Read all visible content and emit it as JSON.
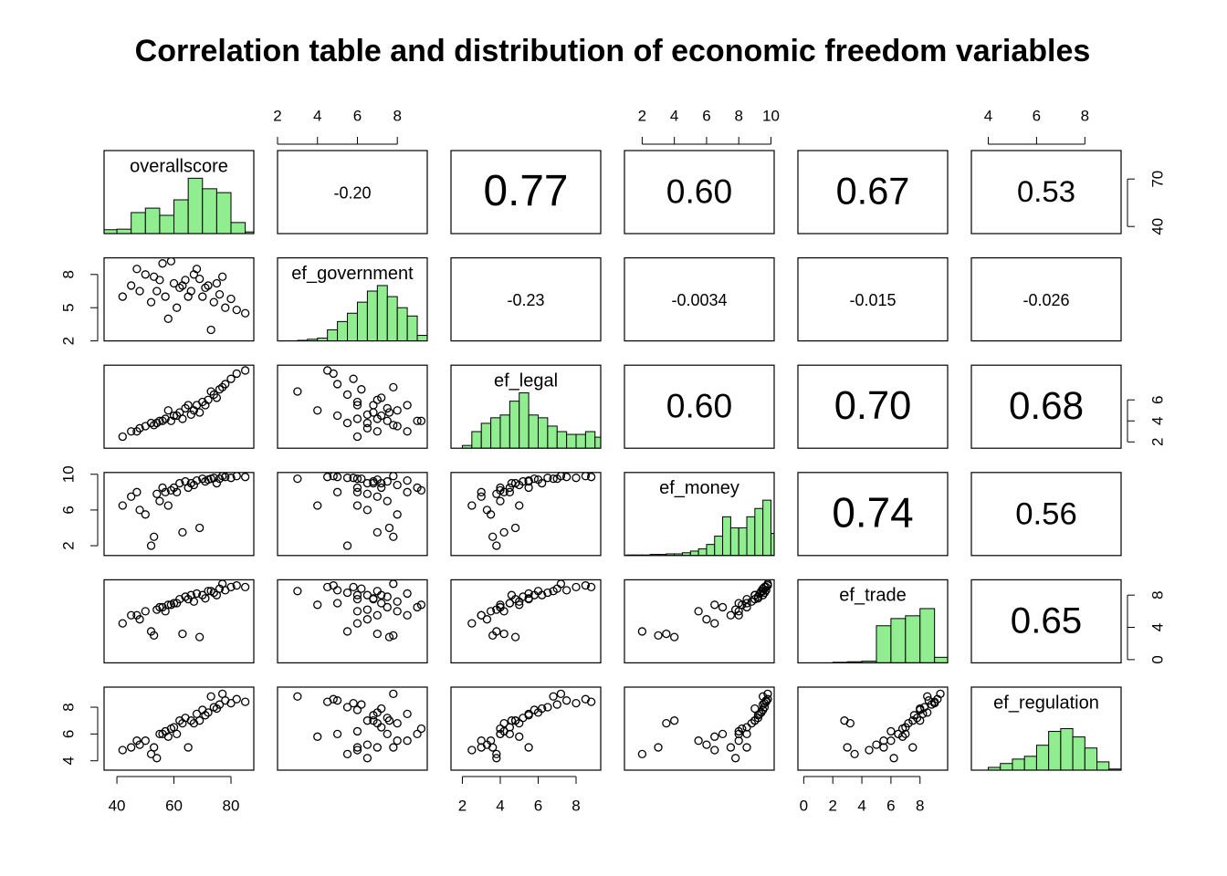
{
  "chart_data": {
    "type": "pairs",
    "title": "Correlation table and distribution of economic freedom variables",
    "variables": [
      {
        "name": "overallscore",
        "lim": [
          35.5,
          88
        ],
        "xticks": [
          40,
          60,
          80
        ],
        "yticks": [
          40,
          70
        ],
        "hist": {
          "bins": [
            35,
            40,
            45,
            50,
            55,
            60,
            65,
            70,
            75,
            80,
            85,
            90
          ],
          "values": [
            0.07,
            0.08,
            0.38,
            0.46,
            0.33,
            0.61,
            1,
            0.81,
            0.74,
            0.2,
            0.03
          ]
        }
      },
      {
        "name": "ef_government",
        "lim": [
          2,
          9.5
        ],
        "xticks": [
          2,
          4,
          6,
          8
        ],
        "yticks": [
          2,
          5,
          8
        ],
        "hist": {
          "bins": [
            2.5,
            3,
            3.5,
            4,
            4.5,
            5,
            5.5,
            6,
            6.5,
            7,
            7.5,
            8,
            8.5,
            9,
            9.5
          ],
          "values": [
            0,
            0.01,
            0.03,
            0.05,
            0.2,
            0.35,
            0.5,
            0.7,
            0.9,
            1,
            0.8,
            0.6,
            0.45,
            0.1
          ]
        }
      },
      {
        "name": "ef_legal",
        "lim": [
          1.4,
          9.3
        ],
        "xticks": [
          2,
          4,
          6,
          8
        ],
        "yticks": [
          2,
          4,
          6
        ],
        "hist": {
          "bins": [
            2,
            2.5,
            3,
            3.5,
            4,
            4.5,
            5,
            5.5,
            6,
            6.5,
            7,
            7.5,
            8,
            8.5,
            9,
            9.5
          ],
          "values": [
            0.05,
            0.3,
            0.45,
            0.55,
            0.6,
            0.85,
            1,
            0.6,
            0.55,
            0.4,
            0.3,
            0.25,
            0.25,
            0.3,
            0.2
          ]
        }
      },
      {
        "name": "ef_money",
        "lim": [
          0.9,
          10.2
        ],
        "xticks": [
          2,
          4,
          6,
          8,
          10
        ],
        "yticks": [
          2,
          6,
          10
        ],
        "hist": {
          "bins": [
            1,
            1.5,
            2,
            2.5,
            3,
            3.5,
            4,
            4.5,
            5,
            5.5,
            6,
            6.5,
            7,
            7.5,
            8,
            8.5,
            9,
            9.5,
            10,
            10.5
          ],
          "values": [
            0.01,
            0.01,
            0.01,
            0.02,
            0.02,
            0.03,
            0.03,
            0.05,
            0.08,
            0.12,
            0.2,
            0.35,
            0.7,
            0.5,
            0.5,
            0.7,
            0.85,
            1,
            0.4
          ]
        }
      },
      {
        "name": "ef_trade",
        "lim": [
          -0.4,
          9.9
        ],
        "xticks": [
          0,
          2,
          4,
          6,
          8
        ],
        "yticks": [
          0,
          4,
          8
        ],
        "hist": {
          "bins": [
            0,
            1,
            2,
            3,
            4,
            5,
            6,
            7,
            8,
            9,
            10
          ],
          "values": [
            0,
            0,
            0.01,
            0.02,
            0.03,
            0.67,
            0.8,
            0.85,
            0.98,
            0.1
          ]
        }
      },
      {
        "name": "ef_regulation",
        "lim": [
          3.3,
          9.5
        ],
        "xticks": [
          4,
          6,
          8
        ],
        "yticks": [
          4,
          6,
          8
        ],
        "hist": {
          "bins": [
            4,
            4.5,
            5,
            5.5,
            6,
            6.5,
            7,
            7.5,
            8,
            8.5,
            9,
            9.5
          ],
          "values": [
            0.05,
            0.12,
            0.2,
            0.25,
            0.45,
            0.7,
            0.75,
            0.6,
            0.4,
            0.15,
            0.02
          ]
        }
      }
    ],
    "hist_ylim": [
      0,
      1.5
    ],
    "hist_color": "#90ee90",
    "point_color": "#000000",
    "correlations": [
      {
        "value": -0.2,
        "label": "-0.20"
      },
      0.77,
      {
        "value": 0.6,
        "label": "0.60"
      },
      0.67,
      0.53,
      -0.23,
      -0.0034,
      -0.015,
      -0.026,
      {
        "value": 0.6,
        "label": "0.60"
      },
      {
        "value": 0.7,
        "label": "0.70"
      },
      0.68,
      0.74,
      0.56,
      0.65
    ],
    "observations": [
      [
        45,
        7.0,
        3.0,
        7.5,
        5.5,
        5.0
      ],
      [
        48,
        6.5,
        3.3,
        6.0,
        5.0,
        5.2
      ],
      [
        50,
        8.0,
        3.5,
        5.5,
        6.0,
        5.5
      ],
      [
        52,
        5.5,
        3.8,
        2.0,
        3.5,
        4.5
      ],
      [
        55,
        7.5,
        4.0,
        7.0,
        6.5,
        6.0
      ],
      [
        57,
        6.0,
        4.2,
        8.0,
        6.0,
        6.2
      ],
      [
        60,
        7.2,
        4.5,
        8.5,
        7.0,
        6.5
      ],
      [
        62,
        6.8,
        4.8,
        9.0,
        7.5,
        7.0
      ],
      [
        58,
        4.0,
        5.0,
        6.5,
        6.8,
        5.8
      ],
      [
        64,
        7.5,
        5.2,
        9.2,
        7.8,
        7.2
      ],
      [
        66,
        6.5,
        4.6,
        9.0,
        8.0,
        7.0
      ],
      [
        68,
        8.5,
        5.5,
        9.3,
        8.2,
        7.5
      ],
      [
        70,
        6.0,
        5.8,
        9.5,
        8.0,
        7.8
      ],
      [
        72,
        7.0,
        6.0,
        9.4,
        8.5,
        7.6
      ],
      [
        74,
        5.5,
        6.5,
        9.6,
        8.3,
        8.0
      ],
      [
        76,
        6.2,
        7.0,
        9.5,
        8.8,
        8.2
      ],
      [
        78,
        5.0,
        7.5,
        9.7,
        8.6,
        8.5
      ],
      [
        80,
        5.8,
        8.0,
        9.6,
        9.0,
        8.3
      ],
      [
        82,
        4.8,
        8.5,
        9.8,
        9.2,
        8.6
      ],
      [
        85,
        4.5,
        8.8,
        9.7,
        9.0,
        8.4
      ],
      [
        42,
        6.0,
        2.5,
        6.5,
        4.5,
        4.8
      ],
      [
        47,
        8.5,
        3.0,
        8.0,
        5.5,
        5.5
      ],
      [
        53,
        7.8,
        3.6,
        3.0,
        3.0,
        5.0
      ],
      [
        56,
        9.0,
        4.0,
        8.5,
        6.5,
        6.0
      ],
      [
        63,
        7.0,
        4.2,
        3.5,
        3.2,
        6.8
      ],
      [
        67,
        8.0,
        5.0,
        8.8,
        7.2,
        6.8
      ],
      [
        69,
        7.6,
        4.8,
        4.0,
        2.8,
        7.0
      ],
      [
        71,
        6.8,
        5.5,
        9.2,
        7.6,
        7.4
      ],
      [
        75,
        7.2,
        6.2,
        9.0,
        8.0,
        7.9
      ],
      [
        61,
        5.0,
        4.5,
        8.0,
        7.0,
        6.0
      ],
      [
        54,
        6.5,
        3.8,
        7.8,
        6.2,
        4.2
      ],
      [
        65,
        6.0,
        5.5,
        8.5,
        7.5,
        5.0
      ],
      [
        73,
        3.0,
        6.8,
        9.5,
        8.5,
        8.8
      ],
      [
        59,
        9.2,
        4.0,
        8.2,
        6.8,
        6.4
      ],
      [
        77,
        7.8,
        7.2,
        9.8,
        9.4,
        9.0
      ]
    ]
  }
}
